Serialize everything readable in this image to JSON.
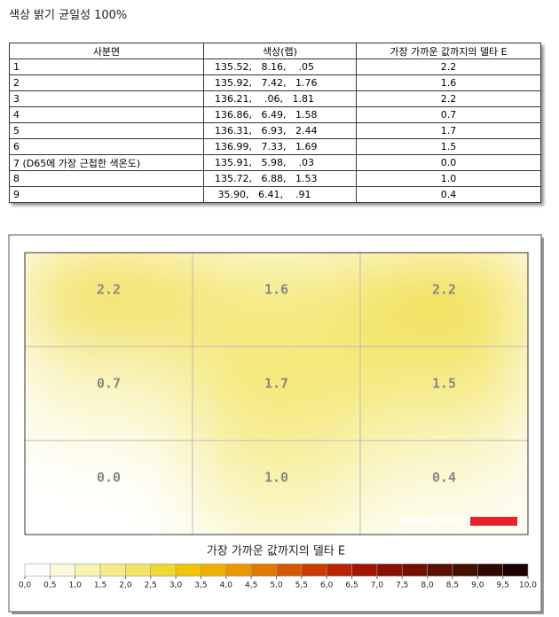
{
  "header": {
    "title": "색상 밝기 균일성 100%"
  },
  "table": {
    "columns": [
      "사분면",
      "색상(랩)",
      "가장 가까운 값까지의 델타 E"
    ],
    "rows": [
      [
        "1",
        "135.52,   8.16,    .05",
        "2.2"
      ],
      [
        "2",
        "135.92,   7.42,   1.76",
        "1.6"
      ],
      [
        "3",
        "136.21,    .06,   1.81",
        "2.2"
      ],
      [
        "4",
        "136.86,   6.49,   1.58",
        "0.7"
      ],
      [
        "5",
        "136.31,   6.93,   2.44",
        "1.7"
      ],
      [
        "6",
        "136.99,   7.33,   1.69",
        "1.5"
      ],
      [
        "7 (D65에 가장 근접한 색온도)",
        "135.91,   5.98,    .03",
        "0.0"
      ],
      [
        "8",
        "135.72,   6.88,   1.53",
        "1.0"
      ],
      [
        "9",
        " 35.90,   6.41,    .91",
        "0.4"
      ]
    ]
  },
  "chart_data": {
    "type": "heatmap",
    "values": [
      [
        2.2,
        1.6,
        2.2
      ],
      [
        0.7,
        1.7,
        1.5
      ],
      [
        0,
        1,
        0.4
      ]
    ],
    "value_labels": [
      [
        "2.2",
        "1.6",
        "2.2"
      ],
      [
        "0.7",
        "1.7",
        "1.5"
      ],
      [
        "0.0",
        "1.0",
        "0.4"
      ]
    ],
    "logo": "datacolor",
    "colorbar": {
      "title": "가장 가까운 값까지의 델타 E",
      "range": [
        0,
        10
      ],
      "ticks": [
        {
          "value": 0,
          "label": "0,0"
        },
        {
          "value": 0.5,
          "label": "0,5"
        },
        {
          "value": 1,
          "label": "1,0"
        },
        {
          "value": 1.5,
          "label": "1,5"
        },
        {
          "value": 2,
          "label": "2,0"
        },
        {
          "value": 2.5,
          "label": "2,5"
        },
        {
          "value": 3,
          "label": "3,0"
        },
        {
          "value": 3.5,
          "label": "3,5"
        },
        {
          "value": 4,
          "label": "4,0"
        },
        {
          "value": 4.5,
          "label": "4,5"
        },
        {
          "value": 5,
          "label": "5,0"
        },
        {
          "value": 5.5,
          "label": "5,5"
        },
        {
          "value": 6,
          "label": "6,0"
        },
        {
          "value": 6.5,
          "label": "6,5"
        },
        {
          "value": 7,
          "label": "7,0"
        },
        {
          "value": 7.5,
          "label": "7,5"
        },
        {
          "value": 8,
          "label": "8,0"
        },
        {
          "value": 8.5,
          "label": "8,5"
        },
        {
          "value": 9,
          "label": "9,0"
        },
        {
          "value": 9.5,
          "label": "9,5"
        },
        {
          "value": 10,
          "label": "10,0"
        }
      ],
      "colors": [
        "#ffffff",
        "#fbf9d8",
        "#f8f3b0",
        "#f5ec88",
        "#f2e460",
        "#f0d830",
        "#f0c400",
        "#efb000",
        "#ea9800",
        "#e27800",
        "#d85800",
        "#cc3c00",
        "#bc2400",
        "#a41400",
        "#8c1000",
        "#741000",
        "#5c1000",
        "#441000",
        "#300800",
        "#1c0000",
        "#000000"
      ]
    }
  }
}
